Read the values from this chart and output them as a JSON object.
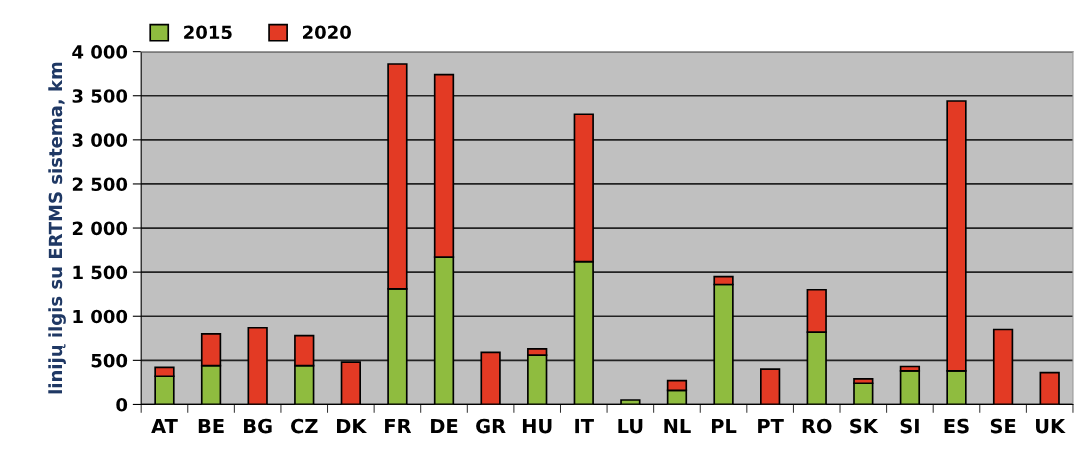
{
  "chart_data": {
    "type": "bar",
    "stacked": true,
    "ylabel": "linijų ilgis su ERTMS sistema, km",
    "categories": [
      "AT",
      "BE",
      "BG",
      "CZ",
      "DK",
      "FR",
      "DE",
      "GR",
      "HU",
      "IT",
      "LU",
      "NL",
      "PL",
      "PT",
      "RO",
      "SK",
      "SI",
      "ES",
      "SE",
      "UK"
    ],
    "series": [
      {
        "name": "2015",
        "color": "#8fbc3f",
        "values": [
          320,
          440,
          null,
          440,
          null,
          1310,
          1670,
          null,
          560,
          1620,
          50,
          160,
          1360,
          null,
          820,
          240,
          380,
          380,
          null,
          null
        ]
      },
      {
        "name": "2020",
        "color": "#e33a24",
        "values": [
          100,
          360,
          870,
          340,
          480,
          2550,
          2070,
          590,
          70,
          1670,
          null,
          110,
          90,
          400,
          480,
          50,
          50,
          3060,
          850,
          360
        ]
      }
    ],
    "ylim": [
      0,
      4000
    ],
    "yticks": [
      0,
      {
        "value": 500,
        "label": "500"
      },
      {
        "value": 1000,
        "label": "1 000"
      },
      {
        "value": 1500,
        "label": "1 500"
      },
      {
        "value": 2000,
        "label": "2 000"
      },
      {
        "value": 2500,
        "label": "2 500"
      },
      {
        "value": 3000,
        "label": "3 000"
      },
      {
        "value": 3500,
        "label": "3 500"
      },
      {
        "value": 4000,
        "label": "4 000"
      }
    ],
    "grid": "y",
    "legend": "top left"
  }
}
